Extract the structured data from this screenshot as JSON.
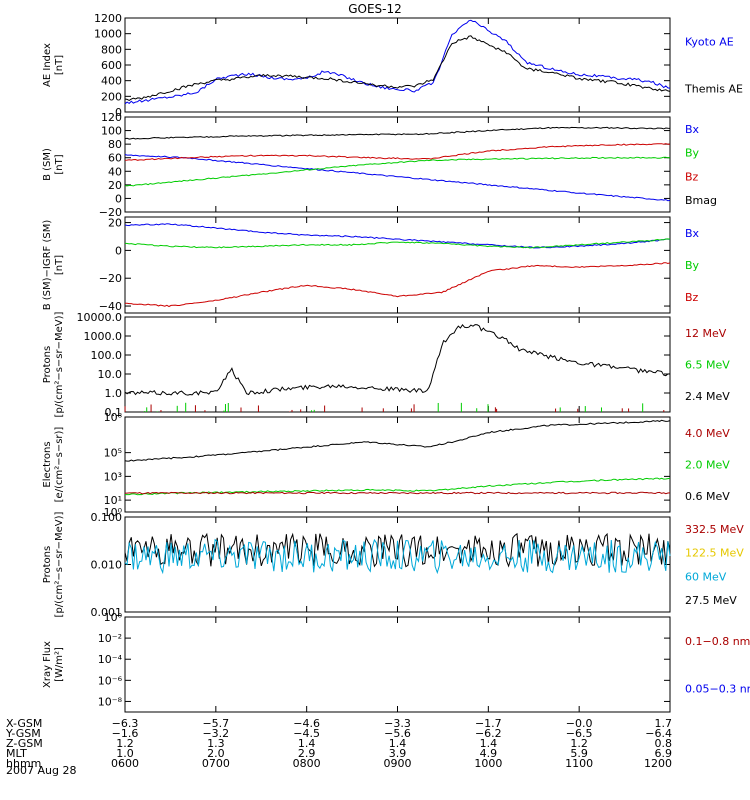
{
  "title": "GOES-12",
  "date": "2007 Aug 28",
  "colors": {
    "black": "#000000",
    "blue": "#0000ee",
    "green": "#00cc00",
    "red": "#cc0000",
    "darkred": "#aa0000",
    "gold": "#e6c800",
    "cyan": "#00a8d8"
  },
  "chart_data": [
    {
      "type": "line",
      "ylabel_lines": [
        "AE Index",
        "[nT]"
      ],
      "scale": "linear",
      "ylim": [
        0,
        1200
      ],
      "ticks": [
        {
          "v": 0,
          "label": "0"
        },
        {
          "v": 200,
          "label": "200"
        },
        {
          "v": 400,
          "label": "400"
        },
        {
          "v": 600,
          "label": "600"
        },
        {
          "v": 800,
          "label": "800"
        },
        {
          "v": 1000,
          "label": "1000"
        },
        {
          "v": 1200,
          "label": "1200"
        }
      ],
      "series": [
        {
          "name": "Kyoto AE",
          "color": "blue",
          "x": [
            0,
            6,
            12,
            18,
            24,
            30,
            36,
            42,
            48,
            54,
            60,
            66,
            72,
            78,
            84,
            90,
            96,
            102,
            108,
            114,
            120,
            126,
            132,
            138,
            144,
            150,
            156,
            162,
            168,
            174,
            180
          ],
          "y": [
            120,
            140,
            180,
            210,
            260,
            420,
            470,
            480,
            440,
            420,
            430,
            520,
            460,
            380,
            320,
            290,
            270,
            380,
            980,
            1180,
            1040,
            900,
            640,
            580,
            520,
            480,
            460,
            430,
            420,
            380,
            300
          ]
        },
        {
          "name": "Themis AE",
          "color": "black",
          "x": [
            0,
            6,
            12,
            18,
            24,
            30,
            36,
            42,
            48,
            54,
            60,
            66,
            72,
            78,
            84,
            90,
            96,
            102,
            108,
            114,
            120,
            126,
            132,
            138,
            144,
            150,
            156,
            162,
            168,
            174,
            180
          ],
          "y": [
            150,
            180,
            240,
            300,
            360,
            400,
            420,
            450,
            470,
            460,
            440,
            430,
            400,
            370,
            340,
            320,
            330,
            420,
            880,
            960,
            860,
            760,
            560,
            520,
            480,
            420,
            400,
            380,
            340,
            300,
            260
          ]
        }
      ],
      "legend": [
        {
          "label": "Kyoto AE",
          "color": "blue"
        },
        {
          "label": "Themis AE",
          "color": "black"
        }
      ]
    },
    {
      "type": "line",
      "ylabel_lines": [
        "B (SM)",
        "[nT]"
      ],
      "scale": "linear",
      "ylim": [
        -20,
        120
      ],
      "ticks": [
        {
          "v": -20,
          "label": "−20"
        },
        {
          "v": 0,
          "label": "0"
        },
        {
          "v": 20,
          "label": "20"
        },
        {
          "v": 40,
          "label": "40"
        },
        {
          "v": 60,
          "label": "60"
        },
        {
          "v": 80,
          "label": "80"
        },
        {
          "v": 100,
          "label": "100"
        },
        {
          "v": 120,
          "label": "120"
        }
      ],
      "series": [
        {
          "name": "Bx",
          "color": "blue",
          "x": [
            0,
            20,
            40,
            60,
            80,
            100,
            120,
            140,
            160,
            180
          ],
          "y": [
            64,
            60,
            52,
            44,
            36,
            28,
            20,
            12,
            4,
            -3
          ]
        },
        {
          "name": "By",
          "color": "green",
          "x": [
            0,
            20,
            40,
            60,
            80,
            100,
            120,
            140,
            160,
            180
          ],
          "y": [
            18,
            26,
            34,
            42,
            50,
            56,
            58,
            59,
            60,
            60
          ]
        },
        {
          "name": "Bz",
          "color": "red",
          "x": [
            0,
            20,
            40,
            60,
            80,
            100,
            120,
            140,
            160,
            180
          ],
          "y": [
            56,
            60,
            63,
            63,
            60,
            58,
            70,
            76,
            79,
            80
          ]
        },
        {
          "name": "Bmag",
          "color": "black",
          "x": [
            0,
            20,
            40,
            60,
            80,
            100,
            120,
            140,
            160,
            180
          ],
          "y": [
            88,
            90,
            92,
            93,
            94,
            95,
            100,
            104,
            104,
            103
          ]
        }
      ],
      "legend": [
        {
          "label": "Bx",
          "color": "blue"
        },
        {
          "label": "By",
          "color": "green"
        },
        {
          "label": "Bz",
          "color": "red"
        },
        {
          "label": "Bmag",
          "color": "black"
        }
      ]
    },
    {
      "type": "line",
      "ylabel_lines": [
        "B (SM)−IGRF (SM)",
        "[nT]"
      ],
      "scale": "linear",
      "ylim": [
        -45,
        24
      ],
      "ticks": [
        {
          "v": -40,
          "label": "−40"
        },
        {
          "v": -20,
          "label": "−20"
        },
        {
          "v": 0,
          "label": "0"
        },
        {
          "v": 20,
          "label": "20"
        }
      ],
      "series": [
        {
          "name": "Bx",
          "color": "blue",
          "x": [
            0,
            15,
            30,
            45,
            60,
            75,
            90,
            105,
            120,
            135,
            150,
            165,
            180
          ],
          "y": [
            18,
            19,
            16,
            13,
            11,
            10,
            8,
            6,
            4,
            2,
            3,
            5,
            8
          ]
        },
        {
          "name": "By",
          "color": "green",
          "x": [
            0,
            15,
            30,
            45,
            60,
            75,
            90,
            105,
            120,
            135,
            150,
            165,
            180
          ],
          "y": [
            5,
            3,
            2,
            3,
            4,
            4,
            6,
            5,
            3,
            2,
            4,
            6,
            8
          ]
        },
        {
          "name": "Bz",
          "color": "red",
          "x": [
            0,
            15,
            30,
            45,
            60,
            75,
            90,
            105,
            120,
            135,
            150,
            165,
            180
          ],
          "y": [
            -38,
            -40,
            -36,
            -30,
            -25,
            -28,
            -33,
            -30,
            -15,
            -11,
            -12,
            -11,
            -9
          ]
        }
      ],
      "legend": [
        {
          "label": "Bx",
          "color": "blue"
        },
        {
          "label": "By",
          "color": "green"
        },
        {
          "label": "Bz",
          "color": "red"
        }
      ]
    },
    {
      "type": "line",
      "ylabel_lines": [
        "Protons",
        "[p/(cm²−s−sr−MeV)]"
      ],
      "scale": "log",
      "ylim": [
        0.1,
        10000
      ],
      "ticks": [
        {
          "v": 0.1,
          "label": "0.1"
        },
        {
          "v": 1,
          "label": "1.0"
        },
        {
          "v": 10,
          "label": "10.0"
        },
        {
          "v": 100,
          "label": "100.0"
        },
        {
          "v": 1000,
          "label": "1000.0"
        },
        {
          "v": 10000,
          "label": "10000.0"
        }
      ],
      "series": [
        {
          "name": "2.4 MeV",
          "color": "black",
          "x": [
            0,
            10,
            20,
            30,
            35,
            40,
            50,
            60,
            70,
            80,
            90,
            100,
            105,
            110,
            115,
            120,
            125,
            130,
            140,
            150,
            160,
            170,
            180
          ],
          "y": [
            1,
            1,
            1,
            1,
            20,
            1,
            1.5,
            2,
            2.5,
            2,
            1.5,
            1.2,
            400,
            3000,
            4000,
            1500,
            800,
            200,
            80,
            40,
            25,
            15,
            10
          ]
        }
      ],
      "legend": [
        {
          "label": "12 MeV",
          "color": "darkred"
        },
        {
          "label": "6.5 MeV",
          "color": "green"
        },
        {
          "label": "2.4 MeV",
          "color": "black"
        }
      ]
    },
    {
      "type": "line",
      "ylabel_lines": [
        "Electrons",
        "[e/(cm²−s−sr)]"
      ],
      "scale": "log",
      "ylim": [
        1,
        100000000
      ],
      "ticks": [
        {
          "v": 1,
          "label": "10⁰"
        },
        {
          "v": 10,
          "label": "10¹"
        },
        {
          "v": 1000,
          "label": "10³"
        },
        {
          "v": 100000,
          "label": "10⁵"
        },
        {
          "v": 100000000,
          "label": "10⁸"
        }
      ],
      "series": [
        {
          "name": "0.6 MeV",
          "color": "black",
          "x": [
            0,
            20,
            40,
            60,
            80,
            100,
            110,
            120,
            140,
            160,
            180
          ],
          "y": [
            20000,
            40000,
            100000,
            300000,
            800000,
            300000,
            1000000,
            5000000,
            20000000,
            30000000,
            50000000
          ]
        },
        {
          "name": "2.0 MeV",
          "color": "green",
          "x": [
            0,
            20,
            40,
            60,
            80,
            100,
            120,
            140,
            160,
            180
          ],
          "y": [
            30,
            40,
            50,
            60,
            70,
            60,
            150,
            300,
            500,
            700
          ]
        },
        {
          "name": "4.0 MeV",
          "color": "darkred",
          "x": [
            0,
            180
          ],
          "y": [
            40,
            40
          ]
        }
      ],
      "legend": [
        {
          "label": "4.0 MeV",
          "color": "darkred"
        },
        {
          "label": "2.0 MeV",
          "color": "green"
        },
        {
          "label": "0.6 MeV",
          "color": "black"
        }
      ]
    },
    {
      "type": "line",
      "ylabel_lines": [
        "Protons",
        "[p/(cm²−s−sr−MeV)]"
      ],
      "scale": "log",
      "ylim": [
        0.001,
        0.1
      ],
      "ticks": [
        {
          "v": 0.001,
          "label": "0.001"
        },
        {
          "v": 0.01,
          "label": "0.010"
        },
        {
          "v": 0.1,
          "label": "0.100"
        }
      ],
      "series": [
        {
          "name": "27.5 MeV",
          "color": "black",
          "x": [
            0,
            180
          ],
          "y": [
            0.02,
            0.02
          ]
        },
        {
          "name": "60 MeV",
          "color": "cyan",
          "x": [
            0,
            180
          ],
          "y": [
            0.015,
            0.015
          ]
        }
      ],
      "legend": [
        {
          "label": "332.5 MeV",
          "color": "darkred"
        },
        {
          "label": "122.5 MeV",
          "color": "gold"
        },
        {
          "label": "60 MeV",
          "color": "cyan"
        },
        {
          "label": "27.5 MeV",
          "color": "black"
        }
      ]
    },
    {
      "type": "line",
      "ylabel_lines": [
        "Xray Flux",
        "[W/m²]"
      ],
      "scale": "log",
      "ylim": [
        1e-09,
        1
      ],
      "ticks": [
        {
          "v": 1,
          "label": "10⁰"
        },
        {
          "v": 0.01,
          "label": "10⁻²"
        },
        {
          "v": 0.0001,
          "label": "10⁻⁴"
        },
        {
          "v": 1e-06,
          "label": "10⁻⁶"
        },
        {
          "v": 1e-08,
          "label": "10⁻⁸"
        }
      ],
      "series": [],
      "legend": [
        {
          "label": "0.1−0.8 nm",
          "color": "darkred"
        },
        {
          "label": "0.05−0.3 nm",
          "color": "blue"
        }
      ]
    }
  ],
  "footer": {
    "rows": [
      {
        "label": "X-GSM",
        "values": [
          "−6.3",
          "−5.7",
          "−4.6",
          "−3.3",
          "−1.7",
          "−0.0",
          "1.7"
        ]
      },
      {
        "label": "Y-GSM",
        "values": [
          "−1.6",
          "−3.2",
          "−4.5",
          "−5.6",
          "−6.2",
          "−6.5",
          "−6.4"
        ]
      },
      {
        "label": "Z-GSM",
        "values": [
          "1.2",
          "1.3",
          "1.4",
          "1.4",
          "1.4",
          "1.2",
          "0.8"
        ]
      },
      {
        "label": "MLT",
        "values": [
          "1.0",
          "2.0",
          "2.9",
          "3.9",
          "4.9",
          "5.9",
          "6.9"
        ]
      },
      {
        "label": "hhmm",
        "values": [
          "0600",
          "0700",
          "0800",
          "0900",
          "1000",
          "1100",
          "1200"
        ]
      }
    ]
  }
}
